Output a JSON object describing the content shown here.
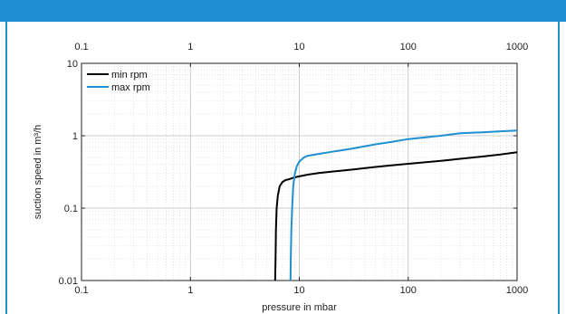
{
  "header": {
    "title": ""
  },
  "colors": {
    "accent": "#1f8fd1",
    "series_min": "#000000",
    "series_max": "#1f8fd1",
    "grid": "#d3d3d3"
  },
  "chart_data": {
    "type": "line",
    "title": "",
    "xlabel": "pressure in mbar",
    "ylabel": "suction speed in m³/h",
    "xscale": "log",
    "yscale": "log",
    "xlim": [
      0.1,
      1000
    ],
    "ylim": [
      0.01,
      10
    ],
    "grid": true,
    "legend_position": "top-left",
    "x_tick_labels": [
      "0.1",
      "1",
      "10",
      "100",
      "1000"
    ],
    "x_tick_labels_top": [
      "0.1",
      "1",
      "10",
      "100",
      "1000"
    ],
    "y_tick_labels": [
      "0.01",
      "0.1",
      "1",
      "10"
    ],
    "series": [
      {
        "name": "min rpm",
        "color": "#000000",
        "x": [
          6.0,
          6.05,
          6.1,
          6.2,
          6.35,
          6.6,
          7.0,
          7.5,
          8.0,
          9,
          10,
          12,
          15,
          20,
          30,
          50,
          70,
          100,
          200,
          300,
          500,
          700,
          1000
        ],
        "y": [
          0.01,
          0.02,
          0.05,
          0.1,
          0.15,
          0.2,
          0.23,
          0.245,
          0.25,
          0.265,
          0.275,
          0.29,
          0.305,
          0.32,
          0.34,
          0.37,
          0.39,
          0.41,
          0.45,
          0.48,
          0.52,
          0.55,
          0.59
        ]
      },
      {
        "name": "max rpm",
        "color": "#1f8fd1",
        "x": [
          8.3,
          8.35,
          8.45,
          8.6,
          8.8,
          9.1,
          9.5,
          10,
          11,
          12,
          15,
          20,
          30,
          50,
          70,
          100,
          200,
          300,
          500,
          700,
          1000
        ],
        "y": [
          0.01,
          0.02,
          0.05,
          0.1,
          0.2,
          0.3,
          0.38,
          0.44,
          0.5,
          0.53,
          0.56,
          0.6,
          0.66,
          0.76,
          0.82,
          0.9,
          1.0,
          1.08,
          1.12,
          1.15,
          1.18
        ]
      }
    ]
  }
}
